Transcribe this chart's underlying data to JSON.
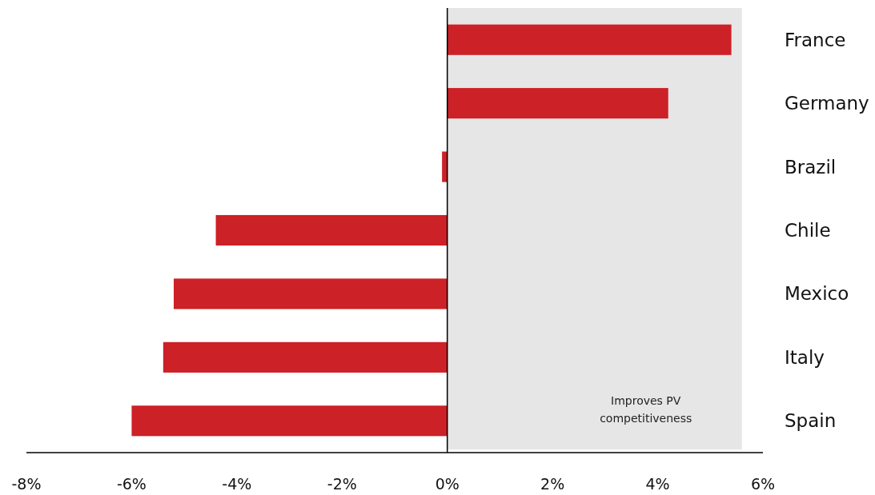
{
  "chart_data": {
    "type": "bar",
    "orientation": "horizontal",
    "categories": [
      "France",
      "Germany",
      "Brazil",
      "Chile",
      "Mexico",
      "Italy",
      "Spain"
    ],
    "values": [
      5.4,
      4.2,
      -0.1,
      -4.4,
      -5.2,
      -5.4,
      -6.0
    ],
    "color": "#cc2127",
    "xlim": [
      -8,
      6
    ],
    "xticks": [
      {
        "value": -8,
        "label": "-8%"
      },
      {
        "value": -6,
        "label": "-6%"
      },
      {
        "value": -4,
        "label": "-4%"
      },
      {
        "value": -2,
        "label": "-2%"
      },
      {
        "value": 0,
        "label": "0%"
      },
      {
        "value": 2,
        "label": "2%"
      },
      {
        "value": 4,
        "label": "4%"
      },
      {
        "value": 6,
        "label": "6%"
      }
    ],
    "bands": [
      {
        "axis": "x",
        "from": 0,
        "to": 5.6,
        "label": "Improves PV competitiveness",
        "color": "#e6e6e6"
      }
    ]
  }
}
